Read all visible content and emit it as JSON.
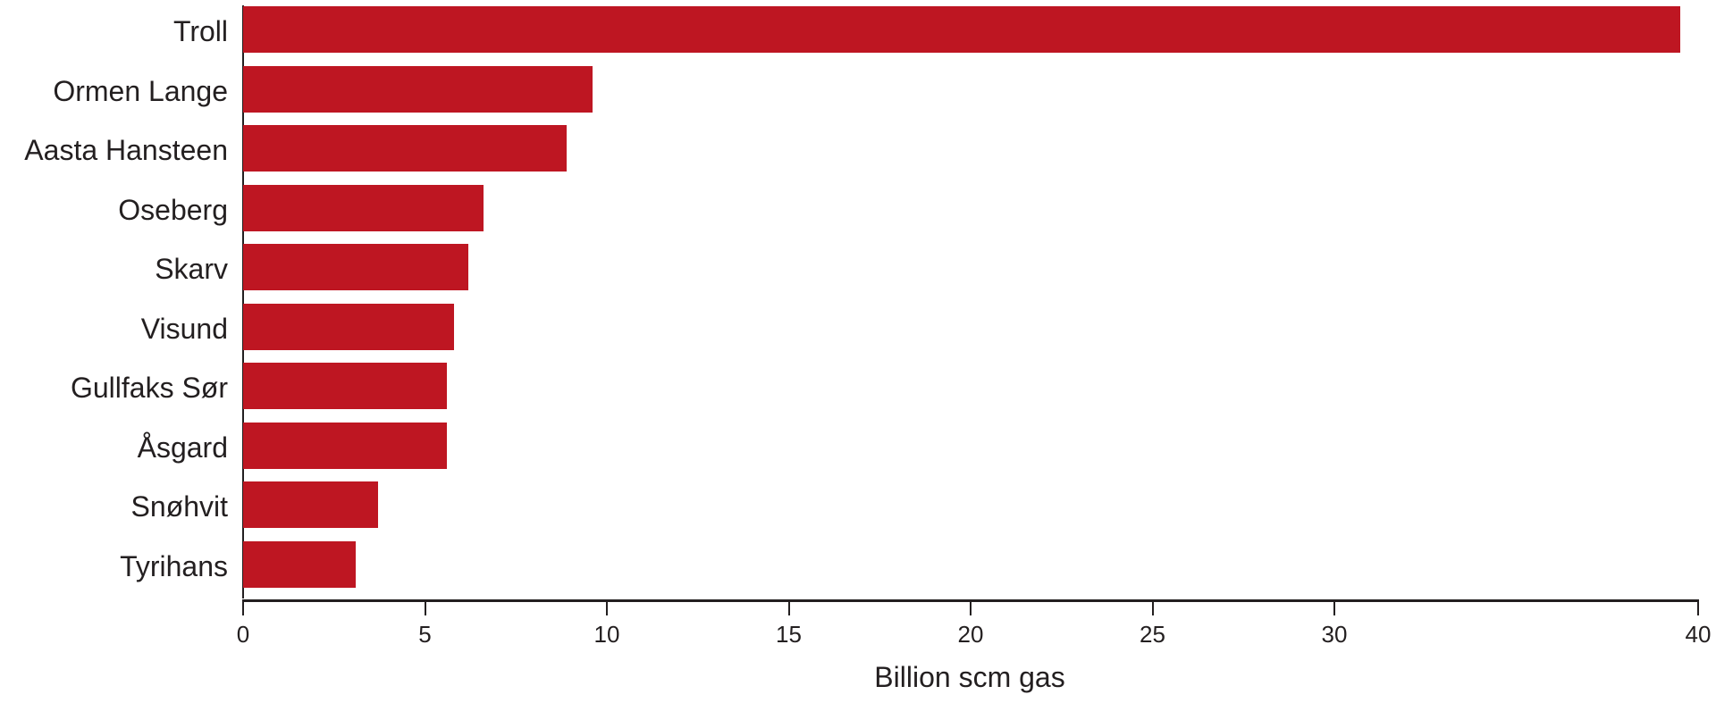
{
  "chart_data": {
    "type": "bar",
    "orientation": "horizontal",
    "title": "",
    "xlabel": "Billion scm gas",
    "ylabel": "",
    "xlim": [
      0,
      40
    ],
    "xticks": [
      "0",
      "5",
      "10",
      "15",
      "20",
      "25",
      "30",
      "40"
    ],
    "xtick_values": [
      0,
      5,
      10,
      15,
      20,
      25,
      30,
      40
    ],
    "grid": false,
    "legend": null,
    "bar_color": "#be1622",
    "categories": [
      "Troll",
      "Ormen Lange",
      "Aasta Hansteen",
      "Oseberg",
      "Skarv",
      "Visund",
      "Gullfaks Sør",
      "Åsgard",
      "Snøhvit",
      "Tyrihans"
    ],
    "values": [
      39.5,
      9.6,
      8.9,
      6.6,
      6.2,
      5.8,
      5.6,
      5.6,
      3.7,
      3.1
    ]
  },
  "labels": {
    "c0": "Troll",
    "c1": "Ormen Lange",
    "c2": "Aasta Hansteen",
    "c3": "Oseberg",
    "c4": "Skarv",
    "c5": "Visund",
    "c6": "Gullfaks Sør",
    "c7": "Åsgard",
    "c8": "Snøhvit",
    "c9": "Tyrihans"
  },
  "ticks": {
    "t0": "0",
    "t5": "5",
    "t10": "10",
    "t15": "15",
    "t20": "20",
    "t25": "25",
    "t30": "30",
    "t40": "40"
  },
  "axis": {
    "xlabel": "Billion scm gas"
  }
}
